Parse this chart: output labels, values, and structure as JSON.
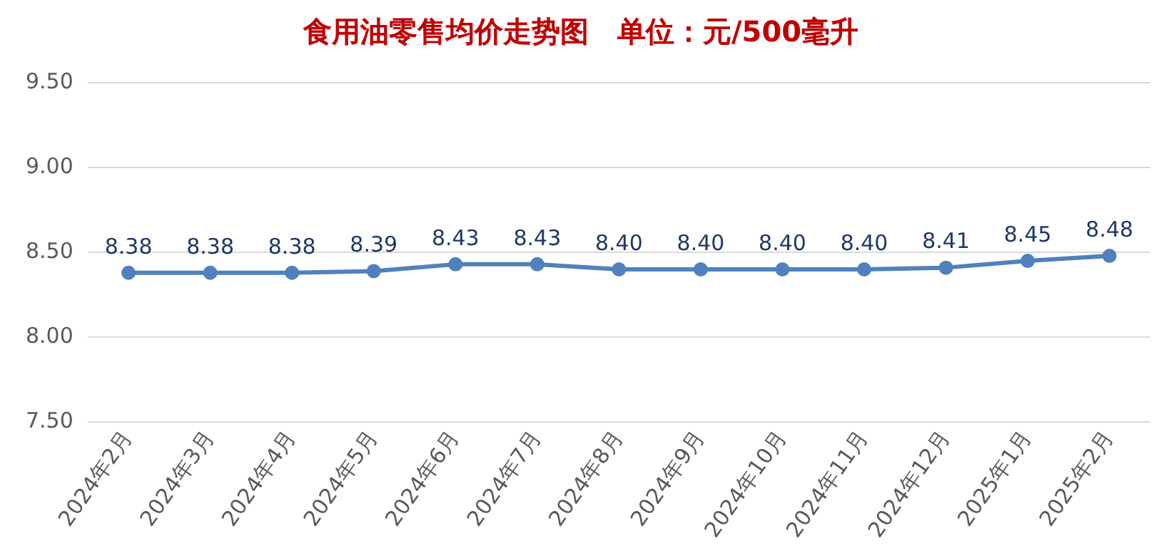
{
  "chart_data": {
    "type": "line",
    "title": "食用油零售均价走势图　单位：元/500毫升",
    "categories": [
      "2024年2月",
      "2024年3月",
      "2024年4月",
      "2024年5月",
      "2024年6月",
      "2024年7月",
      "2024年8月",
      "2024年9月",
      "2024年10月",
      "2024年11月",
      "2024年12月",
      "2025年1月",
      "2025年2月"
    ],
    "series": [
      {
        "color": "#4f81bd",
        "values": [
          8.38,
          8.38,
          8.38,
          8.39,
          8.43,
          8.43,
          8.4,
          8.4,
          8.4,
          8.4,
          8.41,
          8.45,
          8.48
        ],
        "value_labels": [
          "8.38",
          "8.38",
          "8.38",
          "8.39",
          "8.43",
          "8.43",
          "8.40",
          "8.40",
          "8.40",
          "8.40",
          "8.41",
          "8.45",
          "8.48"
        ]
      }
    ],
    "ylim": [
      7.5,
      9.5
    ],
    "yticks": [
      {
        "value": 7.5,
        "label": "7.50"
      },
      {
        "value": 8,
        "label": "8.00"
      },
      {
        "value": 8.5,
        "label": "8.50"
      },
      {
        "value": 9,
        "label": "9.00"
      },
      {
        "value": 9.5,
        "label": "9.50"
      }
    ],
    "grid": "y",
    "legend": false,
    "marker": "circle",
    "line_style": "solid"
  }
}
